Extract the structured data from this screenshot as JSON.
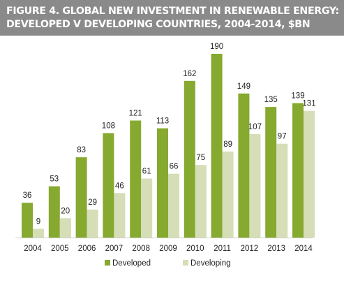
{
  "title_lines": [
    "FIGURE 4. GLOBAL NEW INVESTMENT IN RENEWABLE ENERGY:",
    "DEVELOPED V DEVELOPING COUNTRIES, 2004-2014, $BN"
  ],
  "colors": {
    "title_background": "#8a8a8a",
    "developed": "#86a92f",
    "developing": "#d5deb6",
    "axis": "#cfcfcf",
    "text": "#222222"
  },
  "chart_data": {
    "type": "bar",
    "title": "FIGURE 4. GLOBAL NEW INVESTMENT IN RENEWABLE ENERGY: DEVELOPED V DEVELOPING COUNTRIES, 2004-2014, $BN",
    "categories": [
      "2004",
      "2005",
      "2006",
      "2007",
      "2008",
      "2009",
      "2010",
      "2011",
      "2012",
      "2013",
      "2014"
    ],
    "series": [
      {
        "name": "Developed",
        "values": [
          36,
          53,
          83,
          108,
          121,
          113,
          162,
          190,
          149,
          135,
          139
        ],
        "color": "#86a92f"
      },
      {
        "name": "Developing",
        "values": [
          9,
          20,
          29,
          46,
          61,
          66,
          75,
          89,
          107,
          97,
          131
        ],
        "color": "#d5deb6"
      }
    ],
    "ylim": [
      0,
      190
    ],
    "grid": false,
    "data_labels": true,
    "legend_position": "bottom"
  }
}
